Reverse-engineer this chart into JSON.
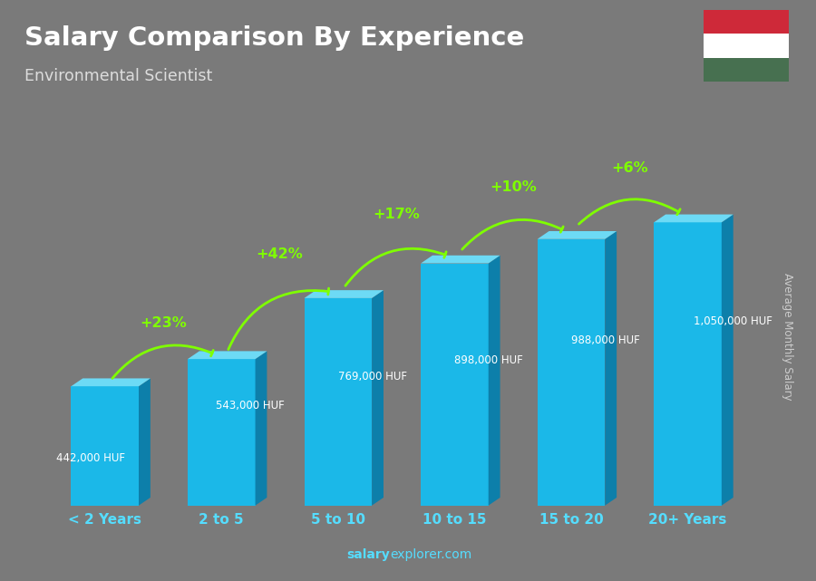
{
  "title": "Salary Comparison By Experience",
  "subtitle": "Environmental Scientist",
  "ylabel": "Average Monthly Salary",
  "categories": [
    "< 2 Years",
    "2 to 5",
    "5 to 10",
    "10 to 15",
    "15 to 20",
    "20+ Years"
  ],
  "values": [
    442000,
    543000,
    769000,
    898000,
    988000,
    1050000
  ],
  "value_labels": [
    "442,000 HUF",
    "543,000 HUF",
    "769,000 HUF",
    "898,000 HUF",
    "988,000 HUF",
    "1,050,000 HUF"
  ],
  "pct_changes": [
    null,
    "+23%",
    "+42%",
    "+17%",
    "+10%",
    "+6%"
  ],
  "bar_face_color": "#1BB8E8",
  "bar_side_color": "#0D7FAA",
  "bar_top_color": "#6DDAF5",
  "header_bg": "#5A5A5A",
  "bg_color": "#7A7A7A",
  "title_color": "#FFFFFF",
  "subtitle_color": "#DDDDDD",
  "category_color": "#55DDFF",
  "value_label_color": "#FFFFFF",
  "pct_color": "#7FFF00",
  "ylabel_color": "#CCCCCC",
  "watermark_bold_color": "#55DDFF",
  "watermark_normal_color": "#55DDFF",
  "flag_colors": [
    "#CE2939",
    "#FFFFFF",
    "#477050"
  ],
  "figsize": [
    9.0,
    6.41
  ],
  "dpi": 100
}
